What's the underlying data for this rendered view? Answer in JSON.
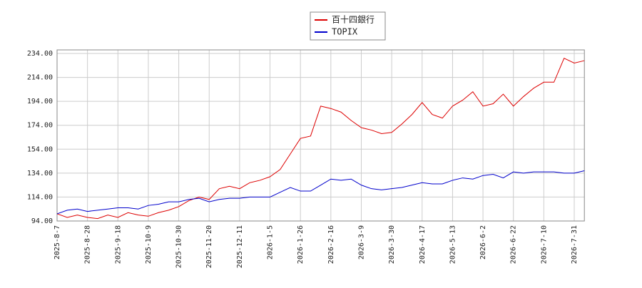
{
  "chart_data": {
    "type": "line",
    "categories": [
      "2025-8-7",
      null,
      null,
      "2025-8-28",
      null,
      null,
      "2025-9-18",
      null,
      null,
      "2025-10-9",
      null,
      null,
      "2025-10-30",
      null,
      null,
      "2025-11-20",
      null,
      null,
      "2025-12-11",
      null,
      null,
      "2026-1-5",
      null,
      null,
      "2026-1-26",
      null,
      null,
      "2026-2-16",
      null,
      null,
      "2026-3-9",
      null,
      null,
      "2026-3-30",
      null,
      null,
      "2026-4-17",
      null,
      null,
      "2026-5-13",
      null,
      null,
      "2026-6-2",
      null,
      null,
      "2026-6-22",
      null,
      null,
      "2026-7-10",
      null,
      null,
      "2026-7-31",
      null
    ],
    "series": [
      {
        "name": "百十四銀行",
        "color": "#dd0000",
        "values": [
          100,
          97,
          99,
          97,
          96,
          99,
          97,
          101,
          99,
          98,
          101,
          103,
          106,
          111,
          114,
          112,
          121,
          123,
          121,
          126,
          128,
          131,
          137,
          150,
          163,
          165,
          190,
          188,
          185,
          178,
          172,
          170,
          167,
          168,
          175,
          183,
          193,
          183,
          180,
          190,
          195,
          202,
          190,
          192,
          200,
          190,
          198,
          205,
          210,
          210,
          230,
          226,
          228
        ]
      },
      {
        "name": "TOPIX",
        "color": "#0000cc",
        "values": [
          100,
          103,
          104,
          102,
          103,
          104,
          105,
          105,
          104,
          107,
          108,
          110,
          110,
          112,
          113,
          110,
          112,
          113,
          113,
          114,
          114,
          114,
          118,
          122,
          119,
          119,
          124,
          129,
          128,
          129,
          124,
          121,
          120,
          121,
          122,
          124,
          126,
          125,
          125,
          128,
          130,
          129,
          132,
          133,
          130,
          135,
          134,
          135,
          135,
          135,
          134,
          134,
          136
        ]
      }
    ],
    "ylim": [
      94,
      234
    ],
    "yticks": [
      {
        "value": 94,
        "label": "94.00"
      },
      {
        "value": 114,
        "label": "114.00"
      },
      {
        "value": 134,
        "label": "134.00"
      },
      {
        "value": 154,
        "label": "154.00"
      },
      {
        "value": 174,
        "label": "174.00"
      },
      {
        "value": 194,
        "label": "194.00"
      },
      {
        "value": 214,
        "label": "214.00"
      },
      {
        "value": 234,
        "label": "234.00"
      }
    ],
    "grid": true,
    "legend": "top"
  }
}
